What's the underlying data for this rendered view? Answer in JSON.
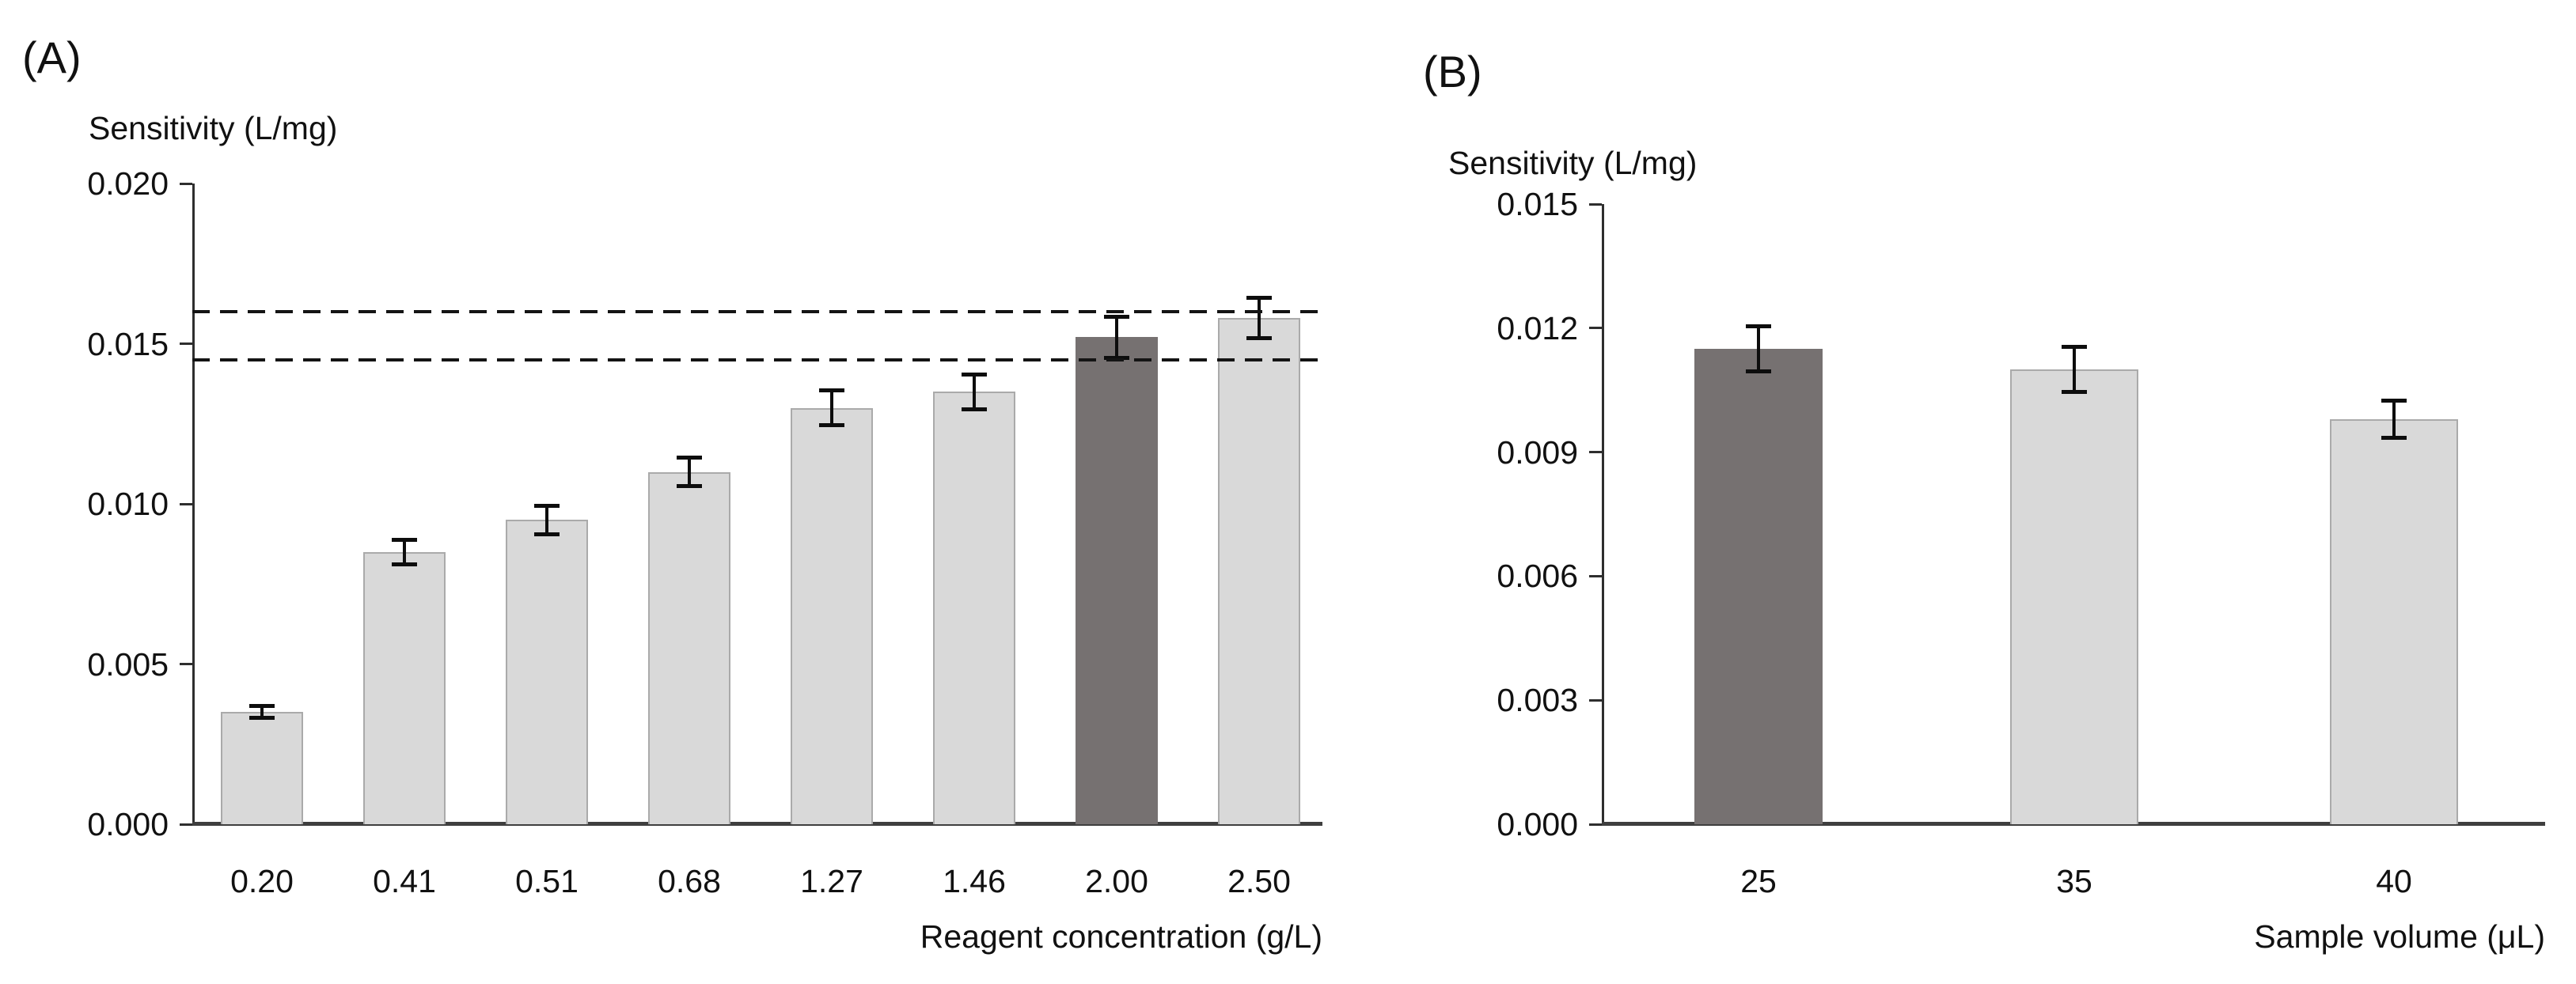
{
  "figure_title": "",
  "colors": {
    "bar_fill": "#d9d9d9",
    "bar_border": "#aaaaaa",
    "highlight_fill": "#767171",
    "axis": "#2e2e2e",
    "x_axis": "#3f3f3f",
    "error_bar": "#0d0d0d",
    "reference_line": "#141414",
    "text": "#111111",
    "background": "#ffffff"
  },
  "chart_data": [
    {
      "type": "bar",
      "panel_label": "(A)",
      "ylabel": "Sensitivity (L/mg)",
      "xlabel": "Reagent concentration (g/L)",
      "categories": [
        "0.20",
        "0.41",
        "0.51",
        "0.68",
        "1.27",
        "1.46",
        "2.00",
        "2.50"
      ],
      "values": [
        0.0035,
        0.0085,
        0.0095,
        0.011,
        0.013,
        0.0135,
        0.0152,
        0.0158
      ],
      "errors": [
        0.00025,
        0.00045,
        0.0005,
        0.0005,
        0.0006,
        0.0006,
        0.0007,
        0.0007
      ],
      "highlight_index": 6,
      "ylim": [
        0,
        0.02
      ],
      "ytick_step": 0.005,
      "ytick_decimals": 3,
      "reference_lines": [
        0.0145,
        0.016
      ],
      "grid": false,
      "legend": "none"
    },
    {
      "type": "bar",
      "panel_label": "(B)",
      "ylabel": "Sensitivity (L/mg)",
      "xlabel": "Sample volume (μL)",
      "categories": [
        "25",
        "35",
        "40"
      ],
      "values": [
        0.0115,
        0.011,
        0.0098
      ],
      "errors": [
        0.0006,
        0.0006,
        0.0005
      ],
      "highlight_index": 0,
      "ylim": [
        0,
        0.015
      ],
      "ytick_step": 0.003,
      "ytick_decimals": 3,
      "reference_lines": [],
      "grid": false,
      "legend": "none"
    }
  ]
}
